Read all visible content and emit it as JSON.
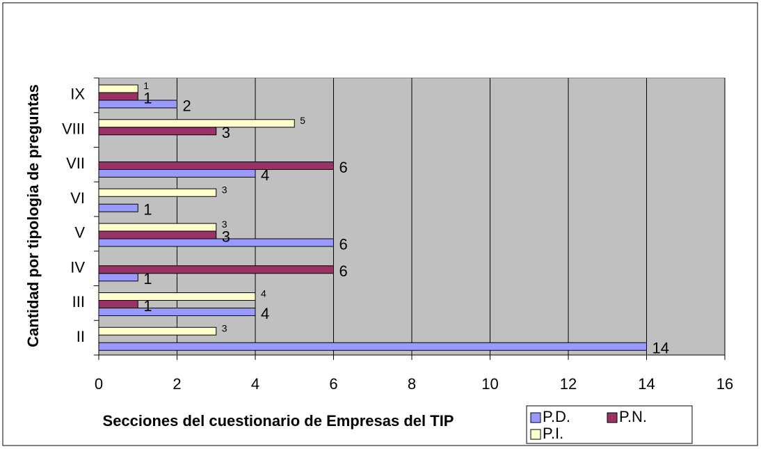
{
  "chart_data": {
    "type": "bar",
    "orientation": "horizontal",
    "xlabel": "Secciones del cuestionario de Empresas del TIP",
    "ylabel": "Cantidad por tipologia de preguntas",
    "categories": [
      "II",
      "III",
      "IV",
      "V",
      "VI",
      "VII",
      "VIII",
      "IX"
    ],
    "series": [
      {
        "name": "P.D.",
        "color": "#9999ff",
        "values": [
          14,
          4,
          1,
          6,
          1,
          4,
          null,
          2
        ]
      },
      {
        "name": "P.N.",
        "color": "#993366",
        "values": [
          null,
          1,
          6,
          3,
          null,
          6,
          3,
          1
        ]
      },
      {
        "name": "P.I.",
        "color": "#ffffcc",
        "values": [
          3,
          4,
          null,
          3,
          3,
          null,
          5,
          1
        ]
      }
    ],
    "xlim": [
      0,
      16
    ],
    "xticks": [
      0,
      2,
      4,
      6,
      8,
      10,
      12,
      14,
      16
    ],
    "grid": true,
    "plot_background": "#c0c0c0"
  }
}
